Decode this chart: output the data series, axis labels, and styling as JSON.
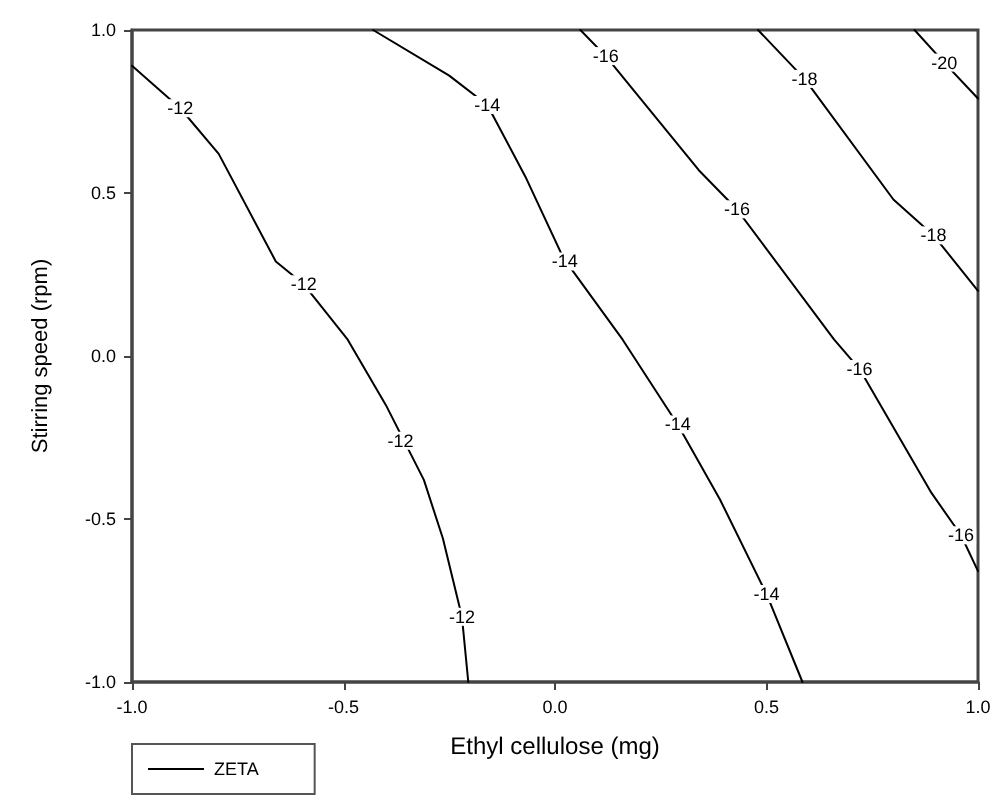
{
  "chart_data": {
    "type": "line",
    "xlabel": "Ethyl cellulose (mg)",
    "ylabel": "Stirring speed (rpm)",
    "xlim": [
      -1,
      1
    ],
    "ylim": [
      -1,
      1
    ],
    "xticks": [
      {
        "value": -1,
        "label": "-1.0"
      },
      {
        "value": -0.5,
        "label": "-0.5"
      },
      {
        "value": 0,
        "label": "0.0"
      },
      {
        "value": 0.5,
        "label": "0.5"
      },
      {
        "value": 1,
        "label": "1.0"
      }
    ],
    "yticks": [
      {
        "value": -1,
        "label": "-1.0"
      },
      {
        "value": -0.5,
        "label": "-0.5"
      },
      {
        "value": 0,
        "label": "0.0"
      },
      {
        "value": 0.5,
        "label": "0.5"
      },
      {
        "value": 1,
        "label": "1.0"
      }
    ],
    "grid": false,
    "legend": "bottom left",
    "marker": "none",
    "line_style": "solid",
    "series": [
      {
        "name": "ZETA",
        "color": "#000000",
        "x": [
          -1,
          -0.886,
          -0.795,
          -0.66,
          -0.594,
          -0.49,
          -0.4,
          -0.31,
          -0.265,
          -0.22,
          -0.205,
          null,
          -0.43,
          -0.25,
          -0.16,
          -0.07,
          0.02,
          0.16,
          0.29,
          0.39,
          0.5,
          0.585,
          null,
          0.06,
          0.12,
          0.34,
          0.43,
          0.66,
          0.72,
          0.89,
          0.96,
          1.0,
          null,
          0.48,
          0.59,
          0.8,
          0.895,
          1.0,
          null,
          0.85,
          0.92,
          1.0
        ],
        "values": [
          0.89,
          0.76,
          0.62,
          0.29,
          0.22,
          0.05,
          -0.15,
          -0.38,
          -0.56,
          -0.8,
          -1.0,
          null,
          1.0,
          0.86,
          0.77,
          0.55,
          0.3,
          0.05,
          -0.21,
          -0.44,
          -0.73,
          -1.0,
          null,
          1.0,
          0.92,
          0.57,
          0.45,
          0.05,
          -0.04,
          -0.42,
          -0.55,
          -0.66,
          null,
          1.0,
          0.85,
          0.48,
          0.37,
          0.2,
          null,
          1.0,
          0.9,
          0.79
        ]
      }
    ],
    "annotations": [
      {
        "text": "-12",
        "x": -0.886,
        "y": 0.76
      },
      {
        "text": "-12",
        "x": -0.594,
        "y": 0.22
      },
      {
        "text": "-12",
        "x": -0.365,
        "y": -0.26
      },
      {
        "text": "-12",
        "x": -0.22,
        "y": -0.8
      },
      {
        "text": "-14",
        "x": -0.16,
        "y": 0.77
      },
      {
        "text": "-14",
        "x": 0.023,
        "y": 0.29
      },
      {
        "text": "-14",
        "x": 0.29,
        "y": -0.21
      },
      {
        "text": "-14",
        "x": 0.5,
        "y": -0.73
      },
      {
        "text": "-16",
        "x": 0.12,
        "y": 0.92
      },
      {
        "text": "-16",
        "x": 0.43,
        "y": 0.45
      },
      {
        "text": "-16",
        "x": 0.72,
        "y": -0.04
      },
      {
        "text": "-16",
        "x": 0.96,
        "y": -0.55
      },
      {
        "text": "-18",
        "x": 0.59,
        "y": 0.85
      },
      {
        "text": "-18",
        "x": 0.895,
        "y": 0.37
      },
      {
        "text": "-20",
        "x": 0.92,
        "y": 0.9
      }
    ]
  }
}
